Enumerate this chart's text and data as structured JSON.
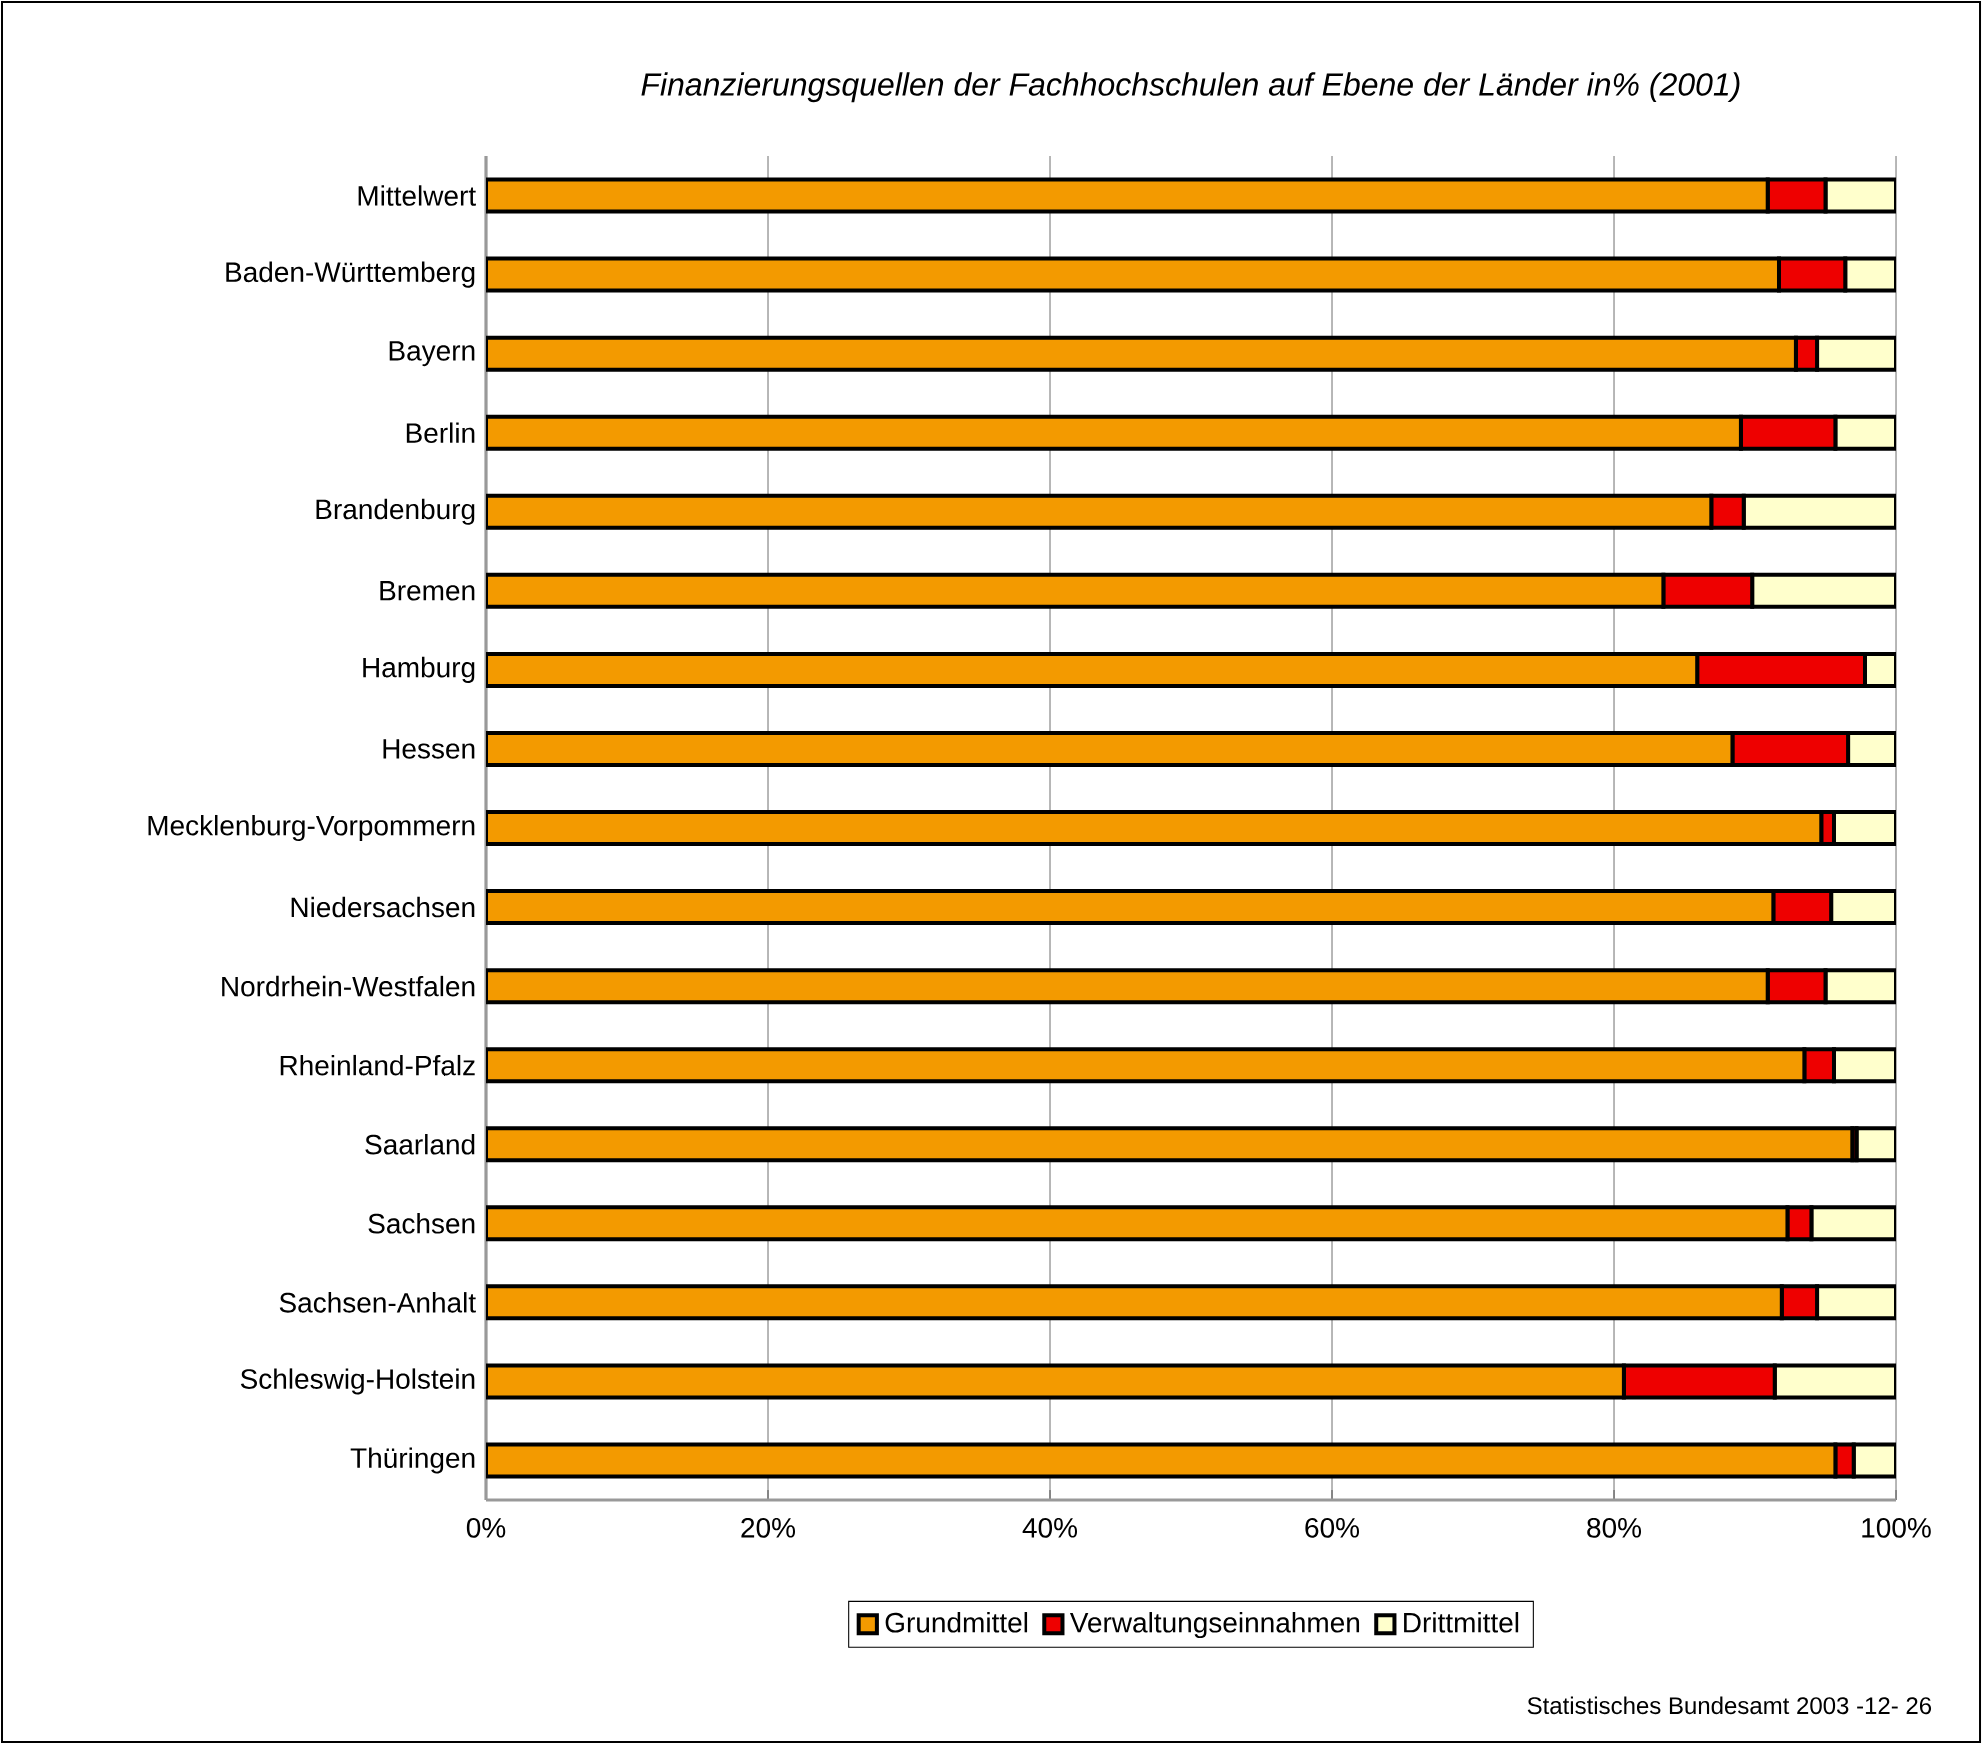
{
  "chart_data": {
    "type": "bar",
    "orientation": "horizontal",
    "stacked": true,
    "title": "Finanzierungsquellen der Fachhochschulen auf Ebene der  Länder  in% (2001)",
    "categories": [
      "Mittelwert",
      "Baden-Württemberg",
      "Bayern",
      "Berlin",
      "Brandenburg",
      "Bremen",
      "Hamburg",
      "Hessen",
      "Mecklenburg-Vorpommern",
      "Niedersachsen",
      "Nordrhein-Westfalen",
      "Rheinland-Pfalz",
      "Saarland",
      "Sachsen",
      "Sachsen-Anhalt",
      "Schleswig-Holstein",
      "Thüringen"
    ],
    "series": [
      {
        "name": "Grundmittel",
        "color": "#f39a00",
        "values": [
          90.9,
          91.7,
          92.9,
          89.0,
          86.9,
          83.5,
          85.9,
          88.4,
          94.7,
          91.3,
          90.9,
          93.5,
          96.9,
          92.3,
          91.9,
          80.7,
          95.7
        ]
      },
      {
        "name": "Verwaltungseinnahmen",
        "color": "#ee0000",
        "values": [
          4.1,
          4.7,
          1.5,
          6.7,
          2.3,
          6.3,
          11.9,
          8.2,
          0.9,
          4.1,
          4.1,
          2.1,
          0.3,
          1.7,
          2.5,
          10.7,
          1.3
        ]
      },
      {
        "name": "Drittmittel",
        "color": "#ffffcc",
        "values": [
          5.0,
          3.6,
          5.6,
          4.3,
          10.8,
          10.2,
          2.2,
          3.4,
          4.4,
          4.6,
          5.0,
          4.4,
          2.8,
          6.0,
          5.6,
          8.6,
          3.0
        ]
      }
    ],
    "xlim": [
      0,
      100
    ],
    "xticks": [
      {
        "value": 0,
        "label": "0%"
      },
      {
        "value": 20,
        "label": "20%"
      },
      {
        "value": 40,
        "label": "40%"
      },
      {
        "value": 60,
        "label": "60%"
      },
      {
        "value": 80,
        "label": "80%"
      },
      {
        "value": 100,
        "label": "100%"
      }
    ],
    "grid": "x",
    "legend": "bottom",
    "annotations": [
      "Statistisches Bundesamt 2003 -12- 26"
    ]
  }
}
